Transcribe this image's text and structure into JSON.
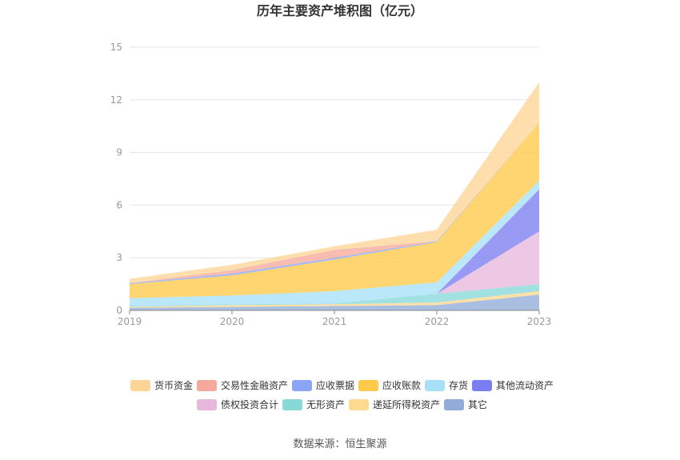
{
  "chart_data": {
    "type": "area",
    "stacked": true,
    "title": "历年主要资产堆积图（亿元）",
    "source": "数据来源：恒生聚源",
    "x": [
      "2019",
      "2020",
      "2021",
      "2022",
      "2023"
    ],
    "y_ticks": [
      "0",
      "3",
      "6",
      "9",
      "12",
      "15"
    ],
    "ylim": [
      0,
      15
    ],
    "grid": true,
    "legend_position": "bottom",
    "series": [
      {
        "name": "其它",
        "color": "#91acd9",
        "values": [
          0.15,
          0.2,
          0.25,
          0.3,
          0.9
        ]
      },
      {
        "name": "递延所得税资产",
        "color": "#ffd98f",
        "values": [
          0.05,
          0.1,
          0.1,
          0.15,
          0.2
        ]
      },
      {
        "name": "无形资产",
        "color": "#88d8d8",
        "values": [
          0.05,
          0.05,
          0.05,
          0.5,
          0.4
        ]
      },
      {
        "name": "债权投资合计",
        "color": "#e8b8dc",
        "values": [
          0,
          0,
          0,
          0,
          3.0
        ]
      },
      {
        "name": "其他流动资产",
        "color": "#7b7ef0",
        "values": [
          0,
          0,
          0,
          0,
          2.4
        ]
      },
      {
        "name": "存货",
        "color": "#a8e0f8",
        "values": [
          0.45,
          0.5,
          0.7,
          0.65,
          0.5
        ]
      },
      {
        "name": "应收账款",
        "color": "#ffc94a",
        "values": [
          0.8,
          1.15,
          1.8,
          2.3,
          3.3
        ]
      },
      {
        "name": "应收票据",
        "color": "#8aa5f5",
        "values": [
          0.05,
          0.1,
          0.1,
          0.05,
          0
        ]
      },
      {
        "name": "交易性金融资产",
        "color": "#f6a99a",
        "values": [
          0,
          0.2,
          0.45,
          0,
          0
        ]
      },
      {
        "name": "货币资金",
        "color": "#fed596",
        "values": [
          0.25,
          0.3,
          0.2,
          0.65,
          2.3
        ]
      }
    ],
    "legend_order": [
      "货币资金",
      "交易性金融资产",
      "应收票据",
      "应收账款",
      "存货",
      "其他流动资产",
      "债权投资合计",
      "无形资产",
      "递延所得税资产",
      "其它"
    ]
  }
}
